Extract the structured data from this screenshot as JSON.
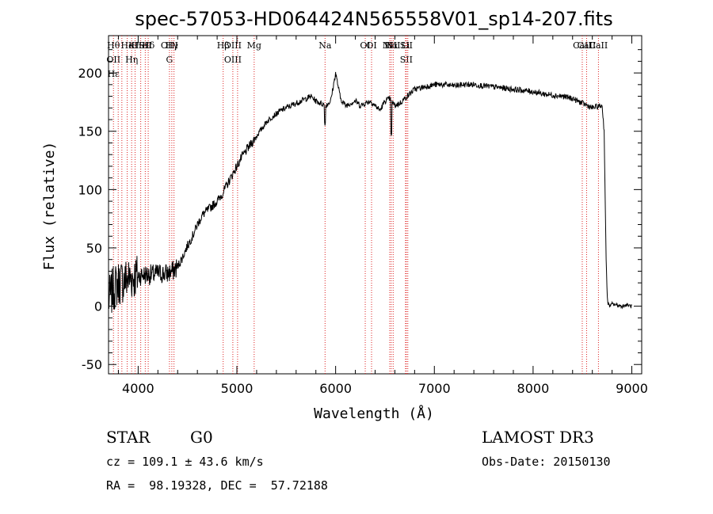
{
  "chart_data": {
    "type": "line",
    "title": "spec-57053-HD064424N565558V01_sp14-207.fits",
    "xlabel": "Wavelength (Å)",
    "ylabel": "Flux (relative)",
    "xlim": [
      3700,
      9100
    ],
    "ylim": [
      -58,
      232
    ],
    "xticks": [
      4000,
      5000,
      6000,
      7000,
      8000,
      9000
    ],
    "yticks": [
      -50,
      0,
      50,
      100,
      150,
      200
    ],
    "grid": false,
    "series": [
      {
        "x": [
          3700,
          3750,
          3800,
          3850,
          3900,
          3950,
          4000,
          4050,
          4100,
          4150,
          4200,
          4250,
          4300,
          4350,
          4400,
          4450,
          4500,
          4550,
          4600,
          4650,
          4700,
          4750,
          4800,
          4850,
          4900,
          4950,
          5000,
          5050,
          5100,
          5150,
          5200,
          5250,
          5300,
          5350,
          5400,
          5450,
          5500,
          5550,
          5600,
          5650,
          5700,
          5750,
          5800,
          5850,
          5900,
          5950,
          6000,
          6050,
          6100,
          6150,
          6200,
          6250,
          6300,
          6350,
          6400,
          6450,
          6500,
          6550,
          6600,
          6650,
          6700,
          6750,
          6800,
          6900,
          7000,
          7100,
          7200,
          7300,
          7400,
          7500,
          7600,
          7700,
          7800,
          7900,
          8000,
          8100,
          8200,
          8300,
          8400,
          8500,
          8550,
          8600,
          8650,
          8700,
          8720,
          8740,
          8750,
          8760,
          8780,
          8800,
          8850,
          8900,
          8950,
          9000
        ],
        "y": [
          5,
          15,
          20,
          22,
          24,
          25,
          26,
          27,
          27,
          27,
          28,
          28,
          28,
          30,
          34,
          42,
          52,
          60,
          70,
          78,
          82,
          86,
          90,
          96,
          104,
          112,
          120,
          128,
          134,
          140,
          146,
          152,
          158,
          162,
          165,
          168,
          170,
          172,
          174,
          176,
          178,
          180,
          176,
          174,
          172,
          176,
          200,
          178,
          172,
          174,
          176,
          172,
          174,
          176,
          172,
          168,
          176,
          178,
          172,
          174,
          178,
          182,
          186,
          188,
          190,
          190,
          189,
          190,
          190,
          189,
          188,
          187,
          186,
          185,
          184,
          182,
          181,
          180,
          178,
          174,
          172,
          170,
          171,
          172,
          150,
          40,
          10,
          2,
          0,
          2,
          1,
          0,
          1,
          0
        ],
        "color": "#000000"
      }
    ],
    "lines": [
      {
        "x": 3750,
        "labels": [
          "Hθ",
          "OII",
          "Hε"
        ]
      },
      {
        "x": 3798,
        "labels": []
      },
      {
        "x": 3835,
        "labels": []
      },
      {
        "x": 3889,
        "labels": [
          "He"
        ]
      },
      {
        "x": 3934,
        "labels": [
          "K",
          "Hη"
        ]
      },
      {
        "x": 3969,
        "labels": [
          "H"
        ]
      },
      {
        "x": 4026,
        "labels": [
          "He"
        ]
      },
      {
        "x": 4072,
        "labels": [
          "SII"
        ]
      },
      {
        "x": 4102,
        "labels": [
          "Hδ"
        ]
      },
      {
        "x": 4317,
        "labels": [
          "OIII",
          "G"
        ]
      },
      {
        "x": 4341,
        "labels": [
          "Hγ"
        ]
      },
      {
        "x": 4363,
        "labels": []
      },
      {
        "x": 4861,
        "labels": [
          "Hβ"
        ]
      },
      {
        "x": 4959,
        "labels": [
          "OIII",
          "OIII"
        ]
      },
      {
        "x": 5007,
        "labels": []
      },
      {
        "x": 5175,
        "labels": [
          "Mg"
        ]
      },
      {
        "x": 5893,
        "labels": [
          "Na"
        ]
      },
      {
        "x": 6300,
        "labels": [
          "OI"
        ]
      },
      {
        "x": 6364,
        "labels": [
          "OI"
        ]
      },
      {
        "x": 6548,
        "labels": [
          "NII"
        ]
      },
      {
        "x": 6563,
        "labels": [
          "Hα"
        ]
      },
      {
        "x": 6583,
        "labels": [
          "NII"
        ]
      },
      {
        "x": 6708,
        "labels": [
          "Li"
        ]
      },
      {
        "x": 6716,
        "labels": [
          "SII",
          "SII"
        ]
      },
      {
        "x": 6731,
        "labels": []
      },
      {
        "x": 8498,
        "labels": [
          "CaII"
        ]
      },
      {
        "x": 8542,
        "labels": [
          "CaII"
        ]
      },
      {
        "x": 8662,
        "labels": [
          "CaII"
        ]
      }
    ]
  },
  "info": {
    "object_type": "STAR",
    "subclass": "G0",
    "survey": "LAMOST DR3",
    "cz": "cz = 109.1 ± 43.6 km/s",
    "obs_date": "Obs-Date: 20150130",
    "coords": "RA =  98.19328, DEC =  57.72188"
  }
}
